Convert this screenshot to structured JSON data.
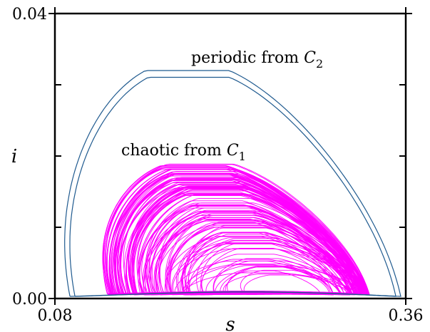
{
  "chart_data": {
    "type": "line",
    "xlabel": "s",
    "ylabel": "i",
    "xlim": [
      0.08,
      0.36
    ],
    "ylim": [
      0.0,
      0.04
    ],
    "x_tick_labels": [
      "0.08",
      "0.36"
    ],
    "y_tick_labels": [
      "0.00",
      "0.04"
    ],
    "minor_y_ticks": [
      0.01,
      0.02,
      0.03
    ],
    "grid": false,
    "annotations": [
      {
        "text": "periodic from ",
        "math": "C",
        "sub": "2",
        "color": "#000000"
      },
      {
        "text": "chaotic from ",
        "math": "C",
        "sub": "1",
        "color": "#000000"
      }
    ],
    "series": [
      {
        "color": "#1f5a8f",
        "style": "closed-loop",
        "loops": 2,
        "description_points": {
          "s_min": 0.092,
          "s_max": 0.356,
          "i_min": 0.0003,
          "i_max": 0.032,
          "s_at_i_max": 0.168
        }
      },
      {
        "color": "#ff00ff",
        "style": "chaotic-orbit",
        "envelope": {
          "s_min": 0.121,
          "s_max": 0.331,
          "i_min": 0.0005,
          "i_max": 0.019,
          "s_at_i_max": 0.175
        }
      }
    ]
  }
}
